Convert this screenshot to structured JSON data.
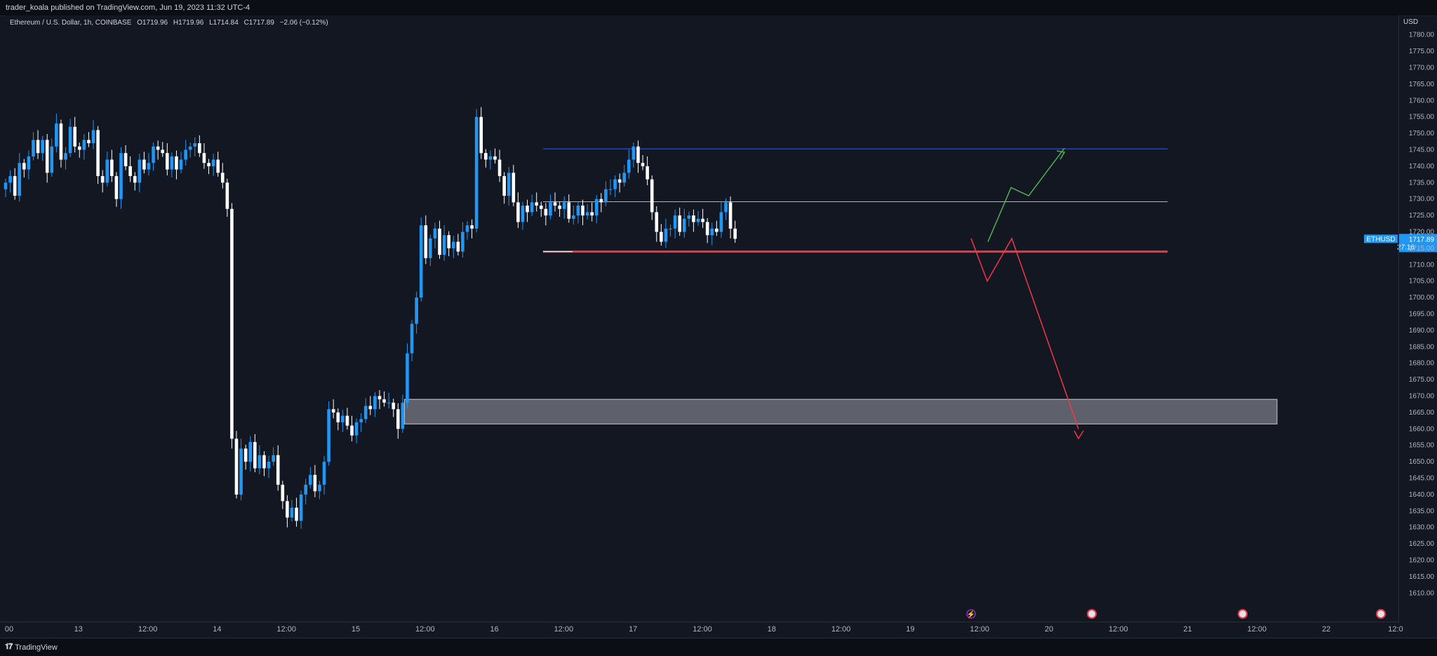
{
  "header": {
    "publisher_line": "trader_koala published on TradingView.com, Jun 19, 2023 11:32 UTC-4"
  },
  "legend": {
    "symbol": "Ethereum / U.S. Dollar, 1h, COINBASE",
    "open": "O1719.96",
    "high": "H1719.96",
    "low": "L1714.84",
    "close": "C1717.89",
    "change": "−2.06 (−0.12%)"
  },
  "price_axis": {
    "currency": "USD",
    "ticks": [
      "1780.00",
      "1775.00",
      "1770.00",
      "1765.00",
      "1760.00",
      "1755.00",
      "1750.00",
      "1745.00",
      "1740.00",
      "1735.00",
      "1730.00",
      "1725.00",
      "1720.00",
      "1715.00",
      "1710.00",
      "1705.00",
      "1700.00",
      "1695.00",
      "1690.00",
      "1685.00",
      "1680.00",
      "1675.00",
      "1670.00",
      "1665.00",
      "1660.00",
      "1655.00",
      "1650.00",
      "1645.00",
      "1640.00",
      "1635.00",
      "1630.00",
      "1625.00",
      "1620.00",
      "1615.00",
      "1610.00"
    ],
    "current_symbol": "ETHUSD",
    "current_price": "1717.89",
    "countdown": "27:16"
  },
  "time_axis": {
    "labels": [
      "00",
      "13",
      "12:00",
      "14",
      "12:00",
      "15",
      "12:00",
      "16",
      "12:00",
      "17",
      "12:00",
      "18",
      "12:00",
      "19",
      "12:00",
      "20",
      "12:00",
      "21",
      "12:00",
      "22",
      "12:0"
    ]
  },
  "footer": {
    "brand": "TradingView"
  },
  "colors": {
    "background": "#131722",
    "up_candle": "#2196f3",
    "down_candle": "#ffffff",
    "resistance_line": "#2962ff",
    "mid_line": "#b2b5be",
    "support_line": "#f23645",
    "demand_zone": "#787b86",
    "bull_path": "#4caf50",
    "bear_path": "#f23645"
  },
  "chart_data": {
    "type": "candlestick",
    "title": "Ethereum / U.S. Dollar, 1h, COINBASE",
    "ylim": [
      1607.5,
      1782.5
    ],
    "y_unit": "USD",
    "x_label_dates": [
      "13",
      "14",
      "15",
      "16",
      "17",
      "18",
      "19",
      "20",
      "21",
      "22"
    ],
    "series": [
      {
        "name": "ETHUSD",
        "values": [
          1735,
          1737,
          1731,
          1741,
          1739,
          1743,
          1748,
          1744,
          1748,
          1738,
          1746,
          1753,
          1742,
          1744,
          1752,
          1746,
          1745,
          1748,
          1747,
          1751,
          1737,
          1735,
          1742,
          1737,
          1730,
          1744,
          1740,
          1737,
          1735,
          1742,
          1739,
          1741,
          1746,
          1745,
          1744,
          1739,
          1743,
          1739,
          1742,
          1745,
          1746,
          1747,
          1744,
          1741,
          1740,
          1742,
          1738,
          1735,
          1727,
          1657,
          1640,
          1654,
          1650,
          1656,
          1648,
          1652,
          1648,
          1650,
          1652,
          1643,
          1638,
          1633,
          1636,
          1632,
          1640,
          1643,
          1646,
          1641,
          1643,
          1650,
          1666,
          1665,
          1662,
          1664,
          1661,
          1658,
          1662,
          1663,
          1667,
          1666,
          1670,
          1669,
          1668,
          1668,
          1666,
          1660,
          1668,
          1683,
          1692,
          1700,
          1722,
          1712,
          1718,
          1721,
          1713,
          1719,
          1715,
          1717,
          1714,
          1720,
          1722,
          1721,
          1755,
          1744,
          1742,
          1743,
          1742,
          1737,
          1731,
          1738,
          1729,
          1723,
          1728,
          1726,
          1729,
          1728,
          1727,
          1725,
          1729,
          1728,
          1727,
          1729,
          1724,
          1725,
          1728,
          1725,
          1726,
          1725,
          1730,
          1729,
          1733,
          1733,
          1736,
          1735,
          1738,
          1742,
          1746,
          1741,
          1740,
          1736,
          1726,
          1720,
          1717,
          1721,
          1721,
          1725,
          1720,
          1724,
          1725,
          1723,
          1724,
          1723,
          1719,
          1721,
          1720,
          1726,
          1729,
          1721,
          1717.89
        ]
      },
      {
        "name": "resistance",
        "values": [
          1745.3
        ]
      },
      {
        "name": "range_mid",
        "values": [
          1729.2
        ]
      },
      {
        "name": "support",
        "values": [
          1714
        ]
      },
      {
        "name": "demand_zone",
        "values": [
          1661.5,
          1669
        ]
      },
      {
        "name": "bull_projection",
        "values": [
          1717,
          1733.5,
          1731,
          1745.5
        ]
      },
      {
        "name": "bear_projection",
        "values": [
          1718,
          1705,
          1718,
          1660
        ]
      }
    ]
  }
}
